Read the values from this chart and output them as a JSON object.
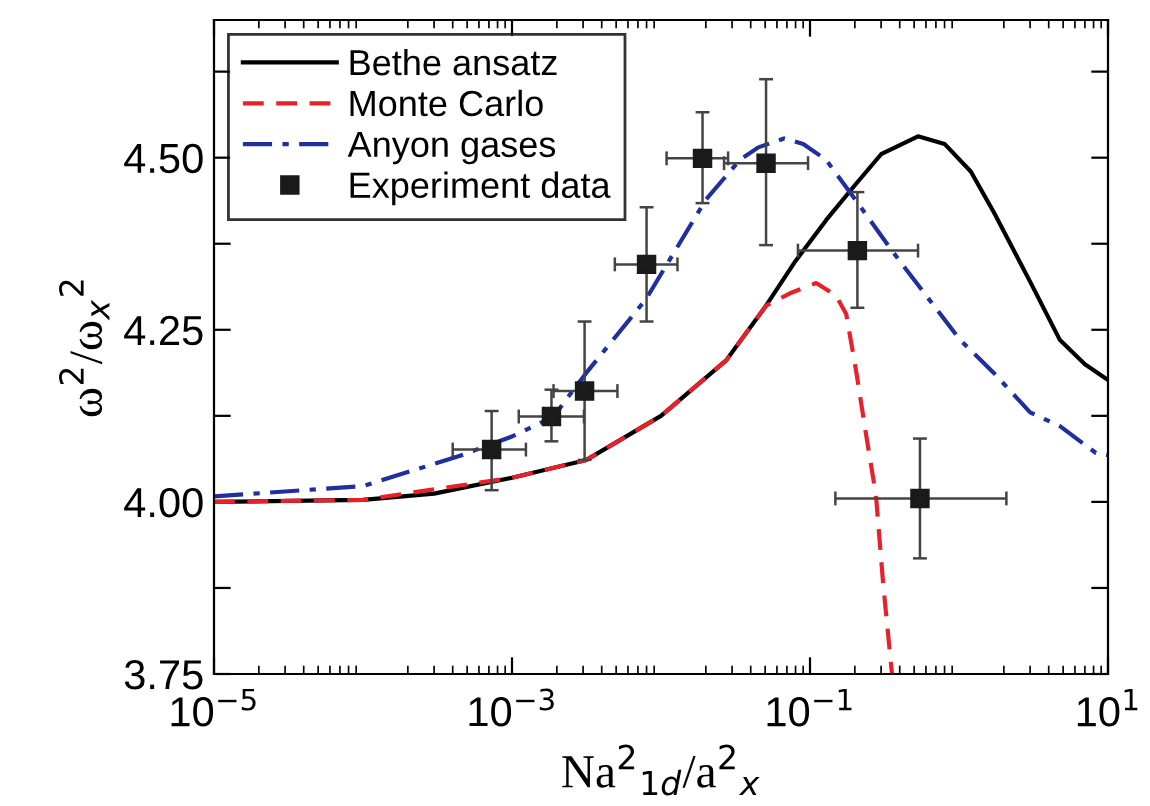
{
  "chart_data": {
    "type": "line",
    "xlabel": "Na$^{2}$$_{1d}$/a$^{2}$$_{x}$",
    "ylabel": "ω$^{2}$/ω$_{x}$$^{2}$",
    "log": "x",
    "xlim": [
      1e-05,
      10
    ],
    "xticks": [
      {
        "value": 1e-05,
        "label": "10$^{−5}$"
      },
      {
        "value": 0.001,
        "label": "10$^{−3}$"
      },
      {
        "value": 0.1,
        "label": "10$^{−1}$"
      },
      {
        "value": 10,
        "label": "10$^{1}$"
      }
    ],
    "ylim": [
      3.75,
      4.7
    ],
    "yticks": [
      {
        "value": 3.75,
        "label": "3.75"
      },
      {
        "value": 3.875,
        "label": null
      },
      {
        "value": 4.0,
        "label": "4.00"
      },
      {
        "value": 4.125,
        "label": null
      },
      {
        "value": 4.25,
        "label": "4.25"
      },
      {
        "value": 4.375,
        "label": null
      },
      {
        "value": 4.5,
        "label": "4.50"
      },
      {
        "value": 4.625,
        "label": null
      }
    ],
    "grid": false,
    "legend": "top left",
    "series": [
      {
        "name": "Bethe ansatz",
        "color": "#000000",
        "line_style": "solid",
        "x": [
          1e-05,
          0.0001,
          0.0003,
          0.001,
          0.00316,
          0.01,
          0.0275,
          0.0507,
          0.08,
          0.129,
          0.2,
          0.3,
          0.531,
          0.8,
          1.2,
          1.72,
          3.0,
          4.76,
          7.0,
          10
        ],
        "values": [
          4.0,
          4.003,
          4.012,
          4.035,
          4.061,
          4.125,
          4.206,
          4.285,
          4.35,
          4.41,
          4.46,
          4.505,
          4.531,
          4.52,
          4.48,
          4.42,
          4.32,
          4.235,
          4.2,
          4.177
        ]
      },
      {
        "name": "Monte Carlo",
        "color": "#e8202a",
        "line_style": "dashed",
        "x": [
          1e-05,
          0.0001,
          0.001,
          0.00316,
          0.01,
          0.0275,
          0.0507,
          0.0734,
          0.11,
          0.149,
          0.175,
          0.204,
          0.237,
          0.277,
          0.31,
          0.355
        ],
        "values": [
          4.0,
          4.003,
          4.035,
          4.061,
          4.125,
          4.206,
          4.285,
          4.303,
          4.318,
          4.3,
          4.273,
          4.19,
          4.1,
          4.01,
          3.88,
          3.75
        ]
      },
      {
        "name": "Anyon gases",
        "color": "#1f2f9e",
        "line_style": "dashdot",
        "x": [
          1e-05,
          0.0001,
          0.000448,
          0.001,
          0.0019,
          0.00314,
          0.0079,
          0.02,
          0.0339,
          0.045,
          0.067,
          0.09,
          0.128,
          0.2,
          0.366,
          0.6,
          1.02,
          1.72,
          3.0,
          4.76,
          8.3,
          10
        ],
        "values": [
          4.008,
          4.023,
          4.067,
          4.095,
          4.124,
          4.187,
          4.294,
          4.439,
          4.497,
          4.515,
          4.528,
          4.52,
          4.497,
          4.44,
          4.361,
          4.3,
          4.235,
          4.187,
          4.13,
          4.11,
          4.071,
          4.068
        ]
      },
      {
        "name": "Experiment data",
        "type": "scatter",
        "color": "#1a1a1a",
        "marker": "square",
        "x": [
          0.00073,
          0.00184,
          0.00307,
          0.008,
          0.019,
          0.0507,
          0.208,
          0.547
        ],
        "values": [
          4.076,
          4.124,
          4.161,
          4.345,
          4.499,
          4.492,
          4.365,
          4.005
        ],
        "errors": [
          [
            4.017,
            4.132
          ],
          [
            4.088,
            4.163
          ],
          [
            4.061,
            4.262
          ],
          [
            4.262,
            4.428
          ],
          [
            4.434,
            4.566
          ],
          [
            4.373,
            4.614
          ],
          [
            4.282,
            4.45
          ],
          [
            3.918,
            4.092
          ]
        ],
        "xerrors": [
          [
            0.0004,
            0.00124
          ],
          [
            0.00111,
            0.00304
          ],
          [
            0.0019,
            0.0051
          ],
          [
            0.0049,
            0.0129
          ],
          [
            0.0109,
            0.0282
          ],
          [
            0.0265,
            0.097
          ],
          [
            0.083,
            0.531
          ],
          [
            0.148,
            2.08
          ]
        ]
      }
    ]
  }
}
